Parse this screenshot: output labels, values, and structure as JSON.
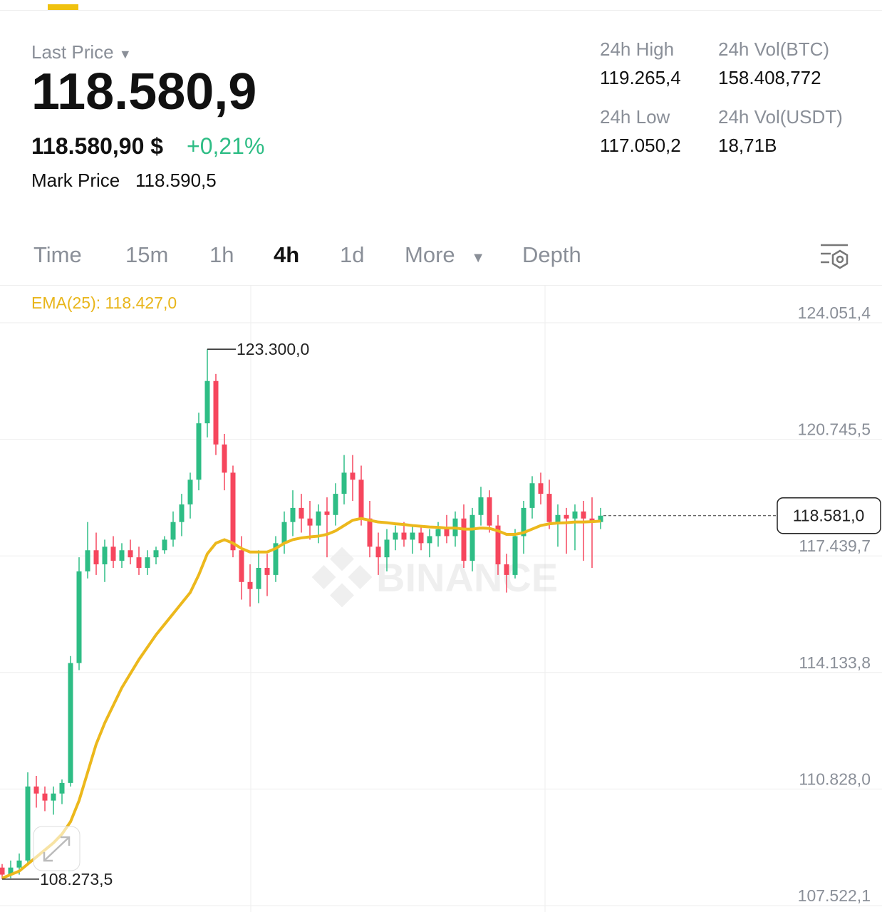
{
  "header": {
    "last_price_label": "Last Price",
    "last_price": "118.580,9",
    "fiat_price": "118.580,90 $",
    "change": "+0,21%",
    "mark_price_label": "Mark Price",
    "mark_price": "118.590,5",
    "stats": [
      {
        "label": "24h High",
        "value": "119.265,4"
      },
      {
        "label": "24h Vol(BTC)",
        "value": "158.408,772"
      },
      {
        "label": "24h Low",
        "value": "117.050,2"
      },
      {
        "label": "24h Vol(USDT)",
        "value": "18,71B"
      }
    ]
  },
  "tabs": [
    "Time",
    "15m",
    "1h",
    "4h",
    "1d",
    "More",
    "Depth"
  ],
  "chart_data": {
    "type": "candlestick",
    "ema_label": "EMA(25): 118.427,0",
    "watermark": "BINANCE",
    "up_color": "#2ebd85",
    "down_color": "#f6465d",
    "ylim": [
      107522.1,
      124051.4
    ],
    "yticks": [
      {
        "value": 124051.4,
        "label": "124.051,4"
      },
      {
        "value": 120745.5,
        "label": "120.745,5"
      },
      {
        "value": 117439.7,
        "label": "117.439,7"
      },
      {
        "value": 114133.8,
        "label": "114.133,8"
      },
      {
        "value": 110828.0,
        "label": "110.828,0"
      },
      {
        "value": 107522.1,
        "label": "107.522,1"
      }
    ],
    "max_label": {
      "value": 123300,
      "label": "123.300,0"
    },
    "min_label": {
      "value": 108273.5,
      "label": "108.273,5"
    },
    "last": {
      "value": 118581,
      "label": "118.581,0"
    },
    "open": [
      108600,
      108400,
      108600,
      108800,
      110900,
      110700,
      110500,
      110700,
      111000,
      114400,
      117000,
      117600,
      117200,
      117700,
      117300,
      117600,
      117400,
      117100,
      117400,
      117600,
      117900,
      118400,
      118900,
      119600,
      121200,
      122400,
      120600,
      119800,
      117600,
      116700,
      116500,
      117100,
      116900,
      117800,
      118400,
      118800,
      118500,
      118300,
      118700,
      118600,
      119200,
      119800,
      119600,
      118500,
      117700,
      117400,
      117900,
      118100,
      117900,
      118100,
      117800,
      118000,
      118200,
      118000,
      118500,
      117300,
      118600,
      119100,
      118300,
      117200,
      116900,
      118000,
      118800,
      119500,
      119200,
      118400,
      118600,
      118500,
      118700,
      118500,
      118400
    ],
    "high": [
      108700,
      108800,
      109000,
      111300,
      111200,
      110900,
      110900,
      111100,
      114600,
      117400,
      118400,
      118100,
      117900,
      118000,
      117800,
      117900,
      117700,
      117600,
      117700,
      118000,
      118700,
      119200,
      119800,
      121500,
      123300,
      122600,
      120900,
      120000,
      118000,
      117200,
      117600,
      117500,
      118000,
      118700,
      119300,
      119200,
      119000,
      118900,
      119100,
      119500,
      120300,
      120300,
      120000,
      119000,
      118100,
      118200,
      118300,
      118400,
      118300,
      118300,
      118200,
      118400,
      118600,
      118700,
      118900,
      118800,
      119400,
      119300,
      118600,
      117500,
      118200,
      119000,
      119700,
      119800,
      119600,
      118900,
      118800,
      118900,
      119000,
      119100,
      118800
    ],
    "low": [
      108273.5,
      108300,
      108400,
      108700,
      110300,
      110200,
      110100,
      110400,
      110900,
      114200,
      116800,
      116900,
      116700,
      117100,
      117100,
      117200,
      116900,
      116900,
      117200,
      117500,
      117700,
      118000,
      118500,
      119300,
      120800,
      120300,
      119300,
      117400,
      116200,
      116000,
      116100,
      116300,
      116700,
      117500,
      118000,
      118100,
      117900,
      117800,
      117400,
      118300,
      118900,
      119000,
      118300,
      117400,
      116900,
      117000,
      117600,
      117700,
      117500,
      117600,
      117400,
      117700,
      117800,
      117700,
      117100,
      117000,
      118300,
      118100,
      116900,
      116400,
      116800,
      117500,
      118500,
      118900,
      118200,
      117700,
      117500,
      117600,
      117300,
      117100,
      118200
    ],
    "close": [
      108400,
      108600,
      108800,
      110900,
      110700,
      110500,
      110700,
      111000,
      114400,
      117000,
      117600,
      117200,
      117700,
      117300,
      117600,
      117400,
      117100,
      117400,
      117600,
      117900,
      118400,
      118900,
      119600,
      121200,
      122400,
      120600,
      119800,
      117600,
      116700,
      116500,
      117100,
      116900,
      117800,
      118400,
      118800,
      118500,
      118300,
      118700,
      118600,
      119200,
      119800,
      119600,
      118500,
      117700,
      117400,
      117900,
      118100,
      117900,
      118100,
      117800,
      118000,
      118200,
      118000,
      118500,
      117300,
      118600,
      119100,
      118300,
      117200,
      116900,
      118000,
      118800,
      119500,
      119200,
      118400,
      118600,
      118500,
      118700,
      118500,
      118400,
      118580
    ],
    "ema": {
      "color": "#ecb81c",
      "values": [
        108300,
        108400,
        108500,
        108700,
        108900,
        109100,
        109300,
        109550,
        109900,
        110500,
        111300,
        112100,
        112700,
        113200,
        113700,
        114100,
        114500,
        114850,
        115200,
        115500,
        115800,
        116100,
        116400,
        116900,
        117500,
        117800,
        117900,
        117800,
        117650,
        117550,
        117550,
        117550,
        117650,
        117800,
        117900,
        117950,
        117980,
        118000,
        118050,
        118150,
        118300,
        118450,
        118500,
        118450,
        118400,
        118380,
        118350,
        118330,
        118300,
        118280,
        118260,
        118250,
        118230,
        118230,
        118200,
        118200,
        118230,
        118220,
        118150,
        118050,
        118050,
        118100,
        118200,
        118300,
        118350,
        118370,
        118380,
        118400,
        118400,
        118410,
        118427
      ]
    }
  }
}
